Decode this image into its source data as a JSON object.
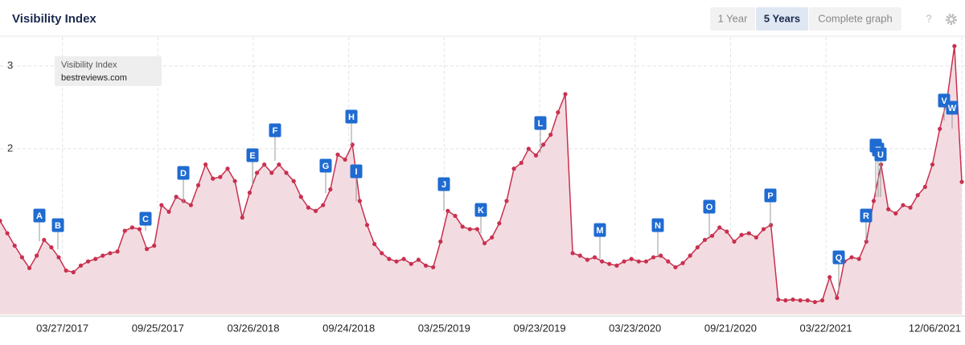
{
  "header": {
    "title": "Visibility Index",
    "buttons": [
      "1 Year",
      "5 Years",
      "Complete graph"
    ],
    "active_button": 1,
    "help": "?"
  },
  "chart_data": {
    "type": "line",
    "legend_title": "Visibility Index",
    "x": [
      "11/28/2016",
      "12/12/2016",
      "12/26/2016",
      "01/09/2017",
      "01/23/2017",
      "02/06/2017",
      "02/20/2017",
      "03/06/2017",
      "03/20/2017",
      "04/03/2017",
      "04/17/2017",
      "05/01/2017",
      "05/15/2017",
      "05/29/2017",
      "06/12/2017",
      "06/26/2017",
      "07/10/2017",
      "07/24/2017",
      "08/07/2017",
      "08/21/2017",
      "09/04/2017",
      "09/18/2017",
      "10/02/2017",
      "10/16/2017",
      "10/30/2017",
      "11/13/2017",
      "11/27/2017",
      "12/11/2017",
      "12/25/2017",
      "01/08/2018",
      "01/22/2018",
      "02/05/2018",
      "02/19/2018",
      "03/05/2018",
      "03/19/2018",
      "04/02/2018",
      "04/16/2018",
      "04/30/2018",
      "05/14/2018",
      "05/28/2018",
      "06/11/2018",
      "06/25/2018",
      "07/09/2018",
      "07/23/2018",
      "08/06/2018",
      "08/20/2018",
      "09/03/2018",
      "09/17/2018",
      "10/01/2018",
      "10/15/2018",
      "10/29/2018",
      "11/12/2018",
      "11/26/2018",
      "12/10/2018",
      "12/24/2018",
      "01/07/2019",
      "01/21/2019",
      "02/04/2019",
      "02/18/2019",
      "03/04/2019",
      "03/18/2019",
      "04/01/2019",
      "04/15/2019",
      "04/29/2019",
      "05/13/2019",
      "05/27/2019",
      "06/10/2019",
      "06/24/2019",
      "07/08/2019",
      "07/22/2019",
      "08/05/2019",
      "08/19/2019",
      "09/02/2019",
      "09/16/2019",
      "09/30/2019",
      "10/14/2019",
      "10/28/2019",
      "11/11/2019",
      "11/25/2019",
      "12/09/2019",
      "12/23/2019",
      "01/06/2020",
      "01/20/2020",
      "02/03/2020",
      "02/17/2020",
      "03/02/2020",
      "03/16/2020",
      "03/30/2020",
      "04/13/2020",
      "04/27/2020",
      "05/11/2020",
      "05/25/2020",
      "06/08/2020",
      "06/22/2020",
      "07/06/2020",
      "07/20/2020",
      "08/03/2020",
      "08/17/2020",
      "08/31/2020",
      "09/14/2020",
      "09/28/2020",
      "10/12/2020",
      "10/26/2020",
      "11/09/2020",
      "11/23/2020",
      "12/07/2020",
      "12/21/2020",
      "01/04/2021",
      "01/18/2021",
      "02/01/2021",
      "02/15/2021",
      "03/01/2021",
      "03/15/2021",
      "03/29/2021",
      "04/12/2021",
      "04/26/2021",
      "05/10/2021",
      "05/24/2021",
      "06/07/2021",
      "06/21/2021",
      "07/05/2021",
      "07/19/2021",
      "08/02/2021",
      "08/16/2021",
      "08/30/2021",
      "09/13/2021",
      "09/27/2021",
      "10/11/2021",
      "10/25/2021",
      "11/08/2021",
      "11/22/2021",
      "12/06/2021"
    ],
    "series": [
      {
        "name": "bestreviews.com",
        "color": "#c9304f",
        "fill": "#f3dce1",
        "values": [
          1.13,
          0.98,
          0.83,
          0.69,
          0.56,
          0.71,
          0.9,
          0.81,
          0.69,
          0.53,
          0.51,
          0.59,
          0.64,
          0.67,
          0.71,
          0.74,
          0.76,
          1.01,
          1.05,
          1.03,
          0.79,
          0.83,
          1.32,
          1.24,
          1.42,
          1.37,
          1.32,
          1.56,
          1.81,
          1.64,
          1.66,
          1.76,
          1.61,
          1.17,
          1.47,
          1.71,
          1.81,
          1.71,
          1.81,
          1.71,
          1.61,
          1.42,
          1.29,
          1.25,
          1.32,
          1.51,
          1.93,
          1.87,
          2.05,
          1.37,
          1.08,
          0.85,
          0.74,
          0.67,
          0.64,
          0.67,
          0.61,
          0.66,
          0.59,
          0.57,
          0.88,
          1.25,
          1.19,
          1.06,
          1.03,
          1.03,
          0.86,
          0.93,
          1.1,
          1.37,
          1.76,
          1.83,
          2.0,
          1.92,
          2.05,
          2.17,
          2.44,
          2.66,
          0.74,
          0.71,
          0.66,
          0.69,
          0.64,
          0.61,
          0.59,
          0.64,
          0.67,
          0.64,
          0.64,
          0.69,
          0.71,
          0.64,
          0.57,
          0.62,
          0.71,
          0.81,
          0.9,
          0.95,
          1.05,
          1.0,
          0.88,
          0.96,
          0.98,
          0.93,
          1.03,
          1.08,
          0.18,
          0.17,
          0.18,
          0.17,
          0.17,
          0.15,
          0.17,
          0.45,
          0.2,
          0.64,
          0.69,
          0.67,
          0.88,
          1.37,
          1.81,
          1.27,
          1.22,
          1.32,
          1.29,
          1.44,
          1.54,
          1.81,
          2.24,
          2.6,
          3.24,
          1.6
        ]
      }
    ],
    "xlim": [
      "11/28/2016",
      "12/06/2021"
    ],
    "xticks": [
      "03/27/2017",
      "09/25/2017",
      "03/26/2018",
      "09/24/2018",
      "03/25/2019",
      "09/23/2019",
      "03/23/2020",
      "09/21/2020",
      "03/22/2021",
      "12/06/2021"
    ],
    "ylim": [
      0,
      3.35
    ],
    "yticks": [
      2,
      3
    ],
    "grid": true,
    "annotations": [
      "A",
      "B",
      "C",
      "D",
      "E",
      "F",
      "G",
      "H",
      "I",
      "J",
      "K",
      "L",
      "M",
      "N",
      "O",
      "P",
      "Q",
      "R",
      "S",
      "T",
      "U",
      "V",
      "W"
    ],
    "annotation_color": "#1f6bd1"
  }
}
